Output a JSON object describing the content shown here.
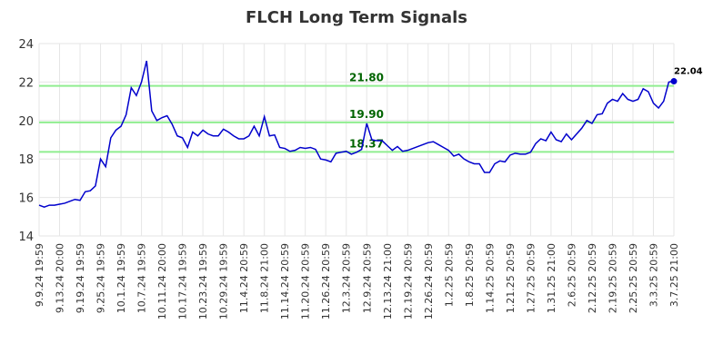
{
  "chart_data": {
    "type": "line",
    "title": "FLCH Long Term Signals",
    "categories": [
      "9.9.24 19:59",
      null,
      null,
      null,
      "9.13.24 20:00",
      null,
      null,
      null,
      "9.19.24 19:59",
      null,
      null,
      null,
      "9.25.24 19:59",
      null,
      null,
      null,
      "10.1.24 19:59",
      null,
      null,
      null,
      "10.7.24 19:59",
      null,
      null,
      null,
      "10.11.24 20:00",
      null,
      null,
      null,
      "10.17.24 19:59",
      null,
      null,
      null,
      "10.23.24 19:59",
      null,
      null,
      null,
      "10.29.24 19:59",
      null,
      null,
      null,
      "11.4.24 20:59",
      null,
      null,
      null,
      "11.8.24 21:00",
      null,
      null,
      null,
      "11.14.24 20:59",
      null,
      null,
      null,
      "11.20.24 20:59",
      null,
      null,
      null,
      "11.26.24 20:59",
      null,
      null,
      null,
      "12.3.24 20:59",
      null,
      null,
      null,
      "12.9.24 20:59",
      null,
      null,
      null,
      "12.13.24 21:00",
      null,
      null,
      null,
      "12.19.24 20:59",
      null,
      null,
      null,
      "12.26.24 20:59",
      null,
      null,
      null,
      "1.2.25 20:59",
      null,
      null,
      null,
      "1.8.25 20:59",
      null,
      null,
      null,
      "1.14.25 20:59",
      null,
      null,
      null,
      "1.21.25 20:59",
      null,
      null,
      null,
      "1.27.25 20:59",
      null,
      null,
      null,
      "1.31.25 21:00",
      null,
      null,
      null,
      "2.6.25 20:59",
      null,
      null,
      null,
      "2.12.25 20:59",
      null,
      null,
      null,
      "2.19.25 20:59",
      null,
      null,
      null,
      "2.25.25 20:59",
      null,
      null,
      null,
      "3.3.25 20:59",
      null,
      null,
      null,
      "3.7.25 21:00"
    ],
    "values": [
      15.6,
      15.5,
      15.6,
      15.6,
      15.65,
      15.7,
      15.8,
      15.9,
      15.85,
      16.3,
      16.35,
      16.6,
      18.0,
      17.6,
      19.1,
      19.5,
      19.7,
      20.3,
      21.7,
      21.3,
      22.0,
      23.1,
      20.5,
      20.0,
      20.15,
      20.25,
      19.8,
      19.2,
      19.1,
      18.6,
      19.4,
      19.2,
      19.5,
      19.3,
      19.2,
      19.2,
      19.55,
      19.4,
      19.2,
      19.05,
      19.05,
      19.2,
      19.7,
      19.2,
      20.2,
      19.2,
      19.25,
      18.6,
      18.55,
      18.4,
      18.45,
      18.6,
      18.55,
      18.6,
      18.5,
      18.0,
      17.95,
      17.85,
      18.3,
      18.35,
      18.4,
      18.25,
      18.35,
      18.5,
      19.85,
      19.0,
      18.95,
      18.95,
      18.7,
      18.45,
      18.65,
      18.4,
      18.45,
      18.55,
      18.65,
      18.75,
      18.85,
      18.9,
      18.75,
      18.6,
      18.45,
      18.15,
      18.25,
      18.0,
      17.85,
      17.75,
      17.75,
      17.3,
      17.3,
      17.75,
      17.9,
      17.85,
      18.2,
      18.3,
      18.25,
      18.25,
      18.35,
      18.8,
      19.05,
      18.95,
      19.4,
      19.0,
      18.9,
      19.3,
      19.0,
      19.3,
      19.6,
      20.0,
      19.85,
      20.3,
      20.35,
      20.9,
      21.1,
      21.0,
      21.4,
      21.1,
      21.0,
      21.1,
      21.65,
      21.5,
      20.9,
      20.65,
      21.0,
      22.0,
      22.04
    ],
    "color": "#0000cc",
    "ylim": [
      14,
      24
    ],
    "yticks": [
      14,
      16,
      18,
      20,
      22,
      24
    ],
    "grid": true,
    "reference_lines": [
      {
        "value": 21.8,
        "label": "21.80"
      },
      {
        "value": 19.9,
        "label": "19.90"
      },
      {
        "value": 18.37,
        "label": "18.37"
      }
    ],
    "reference_color": "#90ee90"
  }
}
